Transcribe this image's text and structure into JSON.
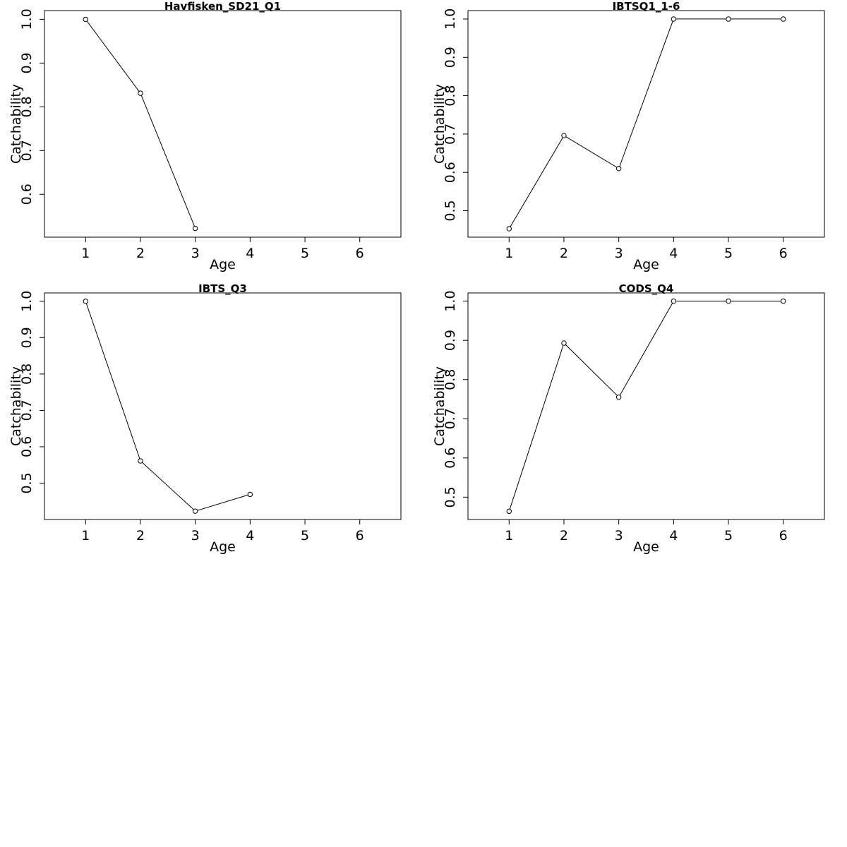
{
  "chart_data": [
    {
      "type": "line",
      "title": "Havfisken_SD21_Q1",
      "xlabel": "Age",
      "ylabel": "Catchability",
      "x": [
        1,
        2,
        3
      ],
      "values": [
        1.0,
        0.831,
        0.522
      ],
      "xlim": [
        0.25,
        6.75
      ],
      "ylim": [
        0.502,
        1.02
      ],
      "xticks": [
        "1",
        "2",
        "3",
        "4",
        "5",
        "6"
      ],
      "yticks": [
        "0.6",
        "0.7",
        "0.8",
        "0.9",
        "1.0"
      ],
      "grid": false
    },
    {
      "type": "line",
      "title": "IBTSQ1_1-6",
      "xlabel": "Age",
      "ylabel": "Catchability",
      "x": [
        1,
        2,
        3,
        4,
        5,
        6
      ],
      "values": [
        0.453,
        0.696,
        0.61,
        1.0,
        1.0,
        1.0
      ],
      "xlim": [
        0.25,
        6.75
      ],
      "ylim": [
        0.431,
        1.022
      ],
      "xticks": [
        "1",
        "2",
        "3",
        "4",
        "5",
        "6"
      ],
      "yticks": [
        "0.5",
        "0.6",
        "0.7",
        "0.8",
        "0.9",
        "1.0"
      ],
      "grid": false
    },
    {
      "type": "line",
      "title": "IBTS_Q3",
      "xlabel": "Age",
      "ylabel": "Catchability",
      "x": [
        1,
        2,
        3,
        4
      ],
      "values": [
        1.0,
        0.561,
        0.423,
        0.469
      ],
      "xlim": [
        0.25,
        6.75
      ],
      "ylim": [
        0.4,
        1.023
      ],
      "xticks": [
        "1",
        "2",
        "3",
        "4",
        "5",
        "6"
      ],
      "yticks": [
        "0.5",
        "0.6",
        "0.7",
        "0.8",
        "0.9",
        "1.0"
      ],
      "grid": false
    },
    {
      "type": "line",
      "title": "CODS_Q4",
      "xlabel": "Age",
      "ylabel": "Catchability",
      "x": [
        1,
        2,
        3,
        4,
        5,
        6
      ],
      "values": [
        0.464,
        0.893,
        0.755,
        1.0,
        1.0,
        1.0
      ],
      "xlim": [
        0.25,
        6.75
      ],
      "ylim": [
        0.443,
        1.021
      ],
      "xticks": [
        "1",
        "2",
        "3",
        "4",
        "5",
        "6"
      ],
      "yticks": [
        "0.5",
        "0.6",
        "0.7",
        "0.8",
        "0.9",
        "1.0"
      ],
      "grid": false
    }
  ]
}
